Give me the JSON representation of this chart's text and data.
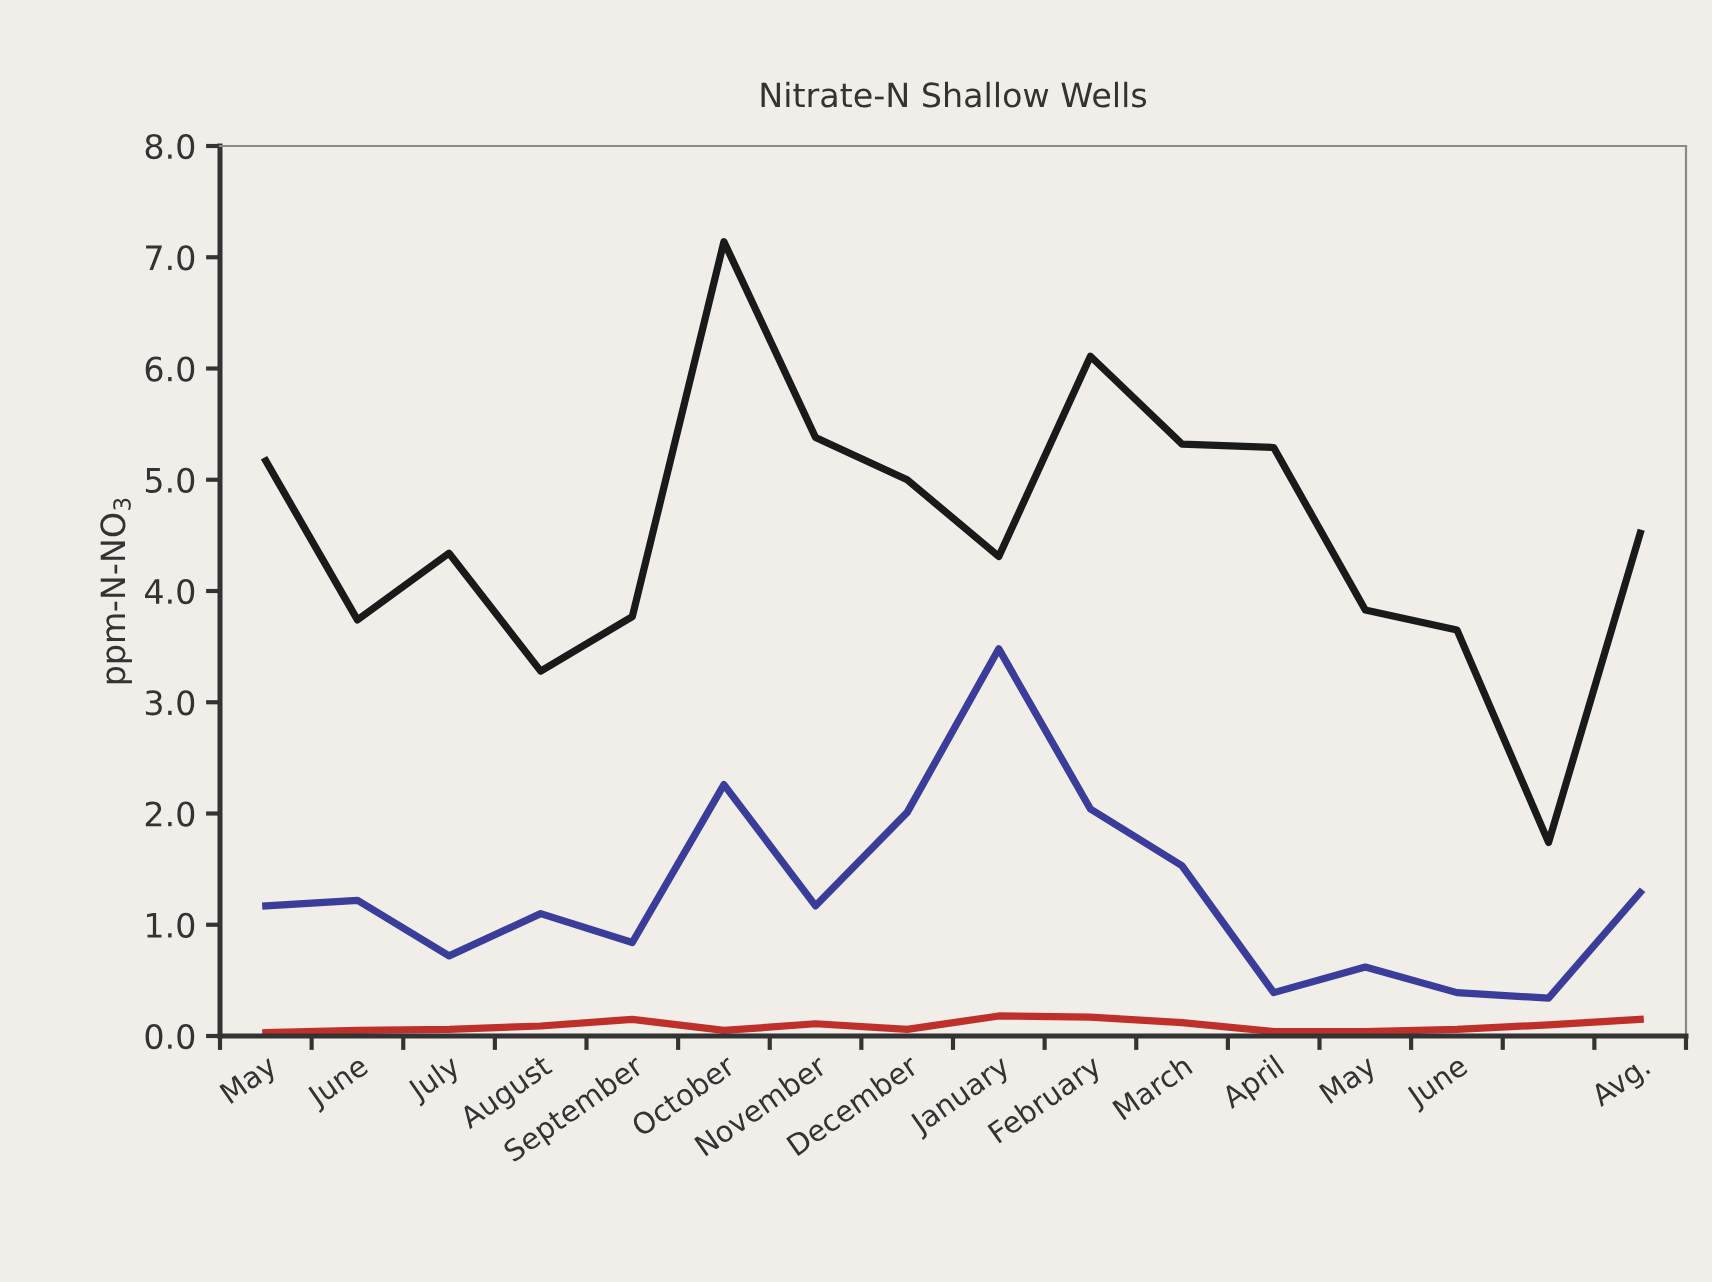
{
  "chart_data": {
    "type": "line",
    "title": "Nitrate-N Shallow Wells",
    "ylabel": "ppm-N-NO$_{3}$",
    "categories": [
      "May",
      "June",
      "July",
      "August",
      "September",
      "October",
      "November",
      "December",
      "January",
      "February",
      "March",
      "April",
      "May",
      "June",
      null,
      "Avg."
    ],
    "series": [
      {
        "color": "#1a1a1a",
        "values": [
          5.17,
          3.74,
          4.34,
          3.28,
          3.77,
          7.14,
          5.38,
          5.0,
          4.31,
          6.11,
          5.32,
          5.29,
          3.83,
          3.65,
          1.74,
          4.52
        ]
      },
      {
        "color": "#3a3d9a",
        "values": [
          1.17,
          1.22,
          0.72,
          1.1,
          0.84,
          2.26,
          1.17,
          2.01,
          3.48,
          2.04,
          1.53,
          0.39,
          0.62,
          0.39,
          0.34,
          1.29
        ]
      },
      {
        "color": "#c0302a",
        "values": [
          0.03,
          0.05,
          0.06,
          0.09,
          0.15,
          0.05,
          0.11,
          0.06,
          0.18,
          0.17,
          0.12,
          0.04,
          0.04,
          0.06,
          0.1,
          0.15
        ]
      }
    ],
    "ylim": [
      0,
      8
    ],
    "yticks": [
      {
        "value": 0,
        "label": "0.0"
      },
      {
        "value": 1,
        "label": "1.0"
      },
      {
        "value": 2,
        "label": "2.0"
      },
      {
        "value": 3,
        "label": "3.0"
      },
      {
        "value": 4,
        "label": "4.0"
      },
      {
        "value": 5,
        "label": "5.0"
      },
      {
        "value": 6,
        "label": "6.0"
      },
      {
        "value": 7,
        "label": "7.0"
      },
      {
        "value": 8,
        "label": "8.0"
      }
    ],
    "grid": false,
    "legend": false,
    "marker": "none",
    "line_style": "solid"
  }
}
